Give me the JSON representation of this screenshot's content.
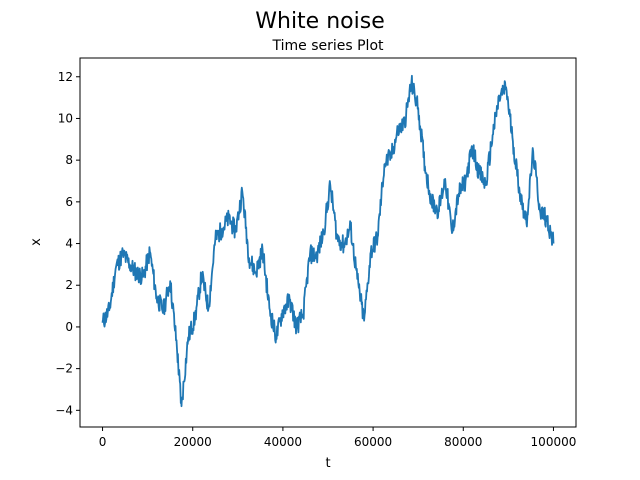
{
  "suptitle": "White noise",
  "chart_data": {
    "type": "line",
    "title": "Time series Plot",
    "xlabel": "t",
    "ylabel": "x",
    "xlim": [
      -5000,
      105000
    ],
    "ylim": [
      -4.8,
      12.9
    ],
    "xticks": [
      0,
      20000,
      40000,
      60000,
      80000,
      100000
    ],
    "xtick_labels": [
      "0",
      "20000",
      "40000",
      "60000",
      "80000",
      "100000"
    ],
    "yticks": [
      -4,
      -2,
      0,
      2,
      4,
      6,
      8,
      10,
      12
    ],
    "ytick_labels": [
      "−4",
      "−2",
      "0",
      "2",
      "4",
      "6",
      "8",
      "10",
      "12"
    ],
    "grid": false,
    "legend": "none",
    "series": [
      {
        "color": "#1f77b4",
        "x": [
          0,
          1500,
          3000,
          4500,
          6000,
          7500,
          9000,
          10500,
          12000,
          13500,
          15000,
          16500,
          17500,
          19000,
          20500,
          22000,
          23500,
          25000,
          26500,
          28000,
          29500,
          31000,
          32500,
          34000,
          35500,
          37000,
          38500,
          40000,
          41500,
          43000,
          44500,
          46000,
          47500,
          49000,
          50500,
          52000,
          53500,
          55000,
          56500,
          58000,
          59500,
          61000,
          62500,
          64000,
          65500,
          67000,
          68500,
          70000,
          71500,
          73000,
          74500,
          76000,
          77500,
          79000,
          80500,
          82000,
          83500,
          85000,
          86500,
          88000,
          89500,
          91000,
          92500,
          94000,
          95500,
          97000,
          98500,
          100000
        ],
        "values": [
          0.2,
          0.8,
          2.9,
          3.5,
          3.0,
          2.6,
          2.4,
          3.6,
          1.4,
          0.8,
          2.2,
          -1.0,
          -3.8,
          -0.5,
          0.4,
          2.5,
          0.9,
          4.2,
          4.7,
          5.2,
          4.6,
          6.5,
          3.3,
          2.6,
          3.7,
          0.9,
          -0.5,
          0.8,
          1.3,
          0.0,
          0.6,
          3.5,
          3.4,
          4.5,
          6.8,
          4.3,
          3.9,
          4.8,
          2.3,
          0.3,
          3.6,
          4.3,
          7.8,
          8.2,
          9.4,
          9.8,
          11.7,
          10.5,
          7.7,
          6.0,
          5.6,
          7.1,
          4.5,
          6.4,
          7.0,
          8.6,
          7.4,
          6.8,
          9.2,
          11.0,
          11.5,
          8.9,
          6.5,
          5.0,
          8.4,
          5.6,
          5.2,
          4.0
        ]
      }
    ]
  }
}
